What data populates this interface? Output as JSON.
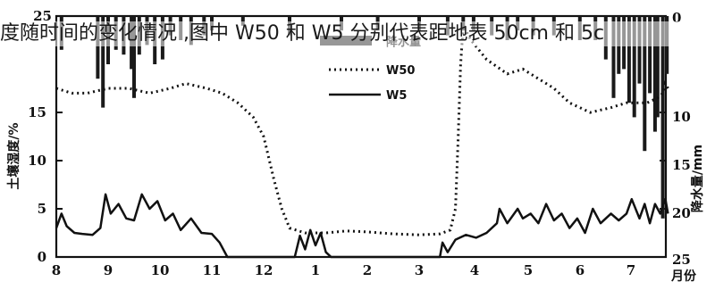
{
  "caption": "度随时间的变化情况 ,图中 W50 和 W5 分别代表距地表 50cm 和 5c",
  "colors": {
    "ink": "#111111",
    "bar": "#1a1a1a"
  },
  "chart_data": {
    "type": "line",
    "ylabel_left": "土壤湿度/%",
    "ylabel_right": "降水量/mm",
    "xlabel": "月份",
    "x_ticks": [
      "8",
      "9",
      "10",
      "11",
      "12",
      "1",
      "2",
      "3",
      "4",
      "5",
      "6",
      "7"
    ],
    "y_left_ticks": [
      "0",
      "5",
      "10",
      "15",
      "25"
    ],
    "y_right_ticks": [
      "0",
      "10",
      "15",
      "20",
      "25"
    ],
    "ylim_left": [
      0,
      25
    ],
    "ylim_right": [
      0,
      25
    ],
    "legend": [
      "降水量",
      "W50",
      "W5"
    ],
    "legend_position": "top-center",
    "series": [
      {
        "name": "W50",
        "style": "dotted",
        "points": [
          [
            0.0,
            17.5
          ],
          [
            0.3,
            17.0
          ],
          [
            0.6,
            17.0
          ],
          [
            1.0,
            17.5
          ],
          [
            1.4,
            17.5
          ],
          [
            1.8,
            17.0
          ],
          [
            2.2,
            17.5
          ],
          [
            2.5,
            18.0
          ],
          [
            2.9,
            17.5
          ],
          [
            3.2,
            17.0
          ],
          [
            3.5,
            16.0
          ],
          [
            3.8,
            14.5
          ],
          [
            4.0,
            12.5
          ],
          [
            4.2,
            8.0
          ],
          [
            4.35,
            5.0
          ],
          [
            4.5,
            3.0
          ],
          [
            4.8,
            2.5
          ],
          [
            5.2,
            2.5
          ],
          [
            5.6,
            2.7
          ],
          [
            6.0,
            2.6
          ],
          [
            6.5,
            2.4
          ],
          [
            7.0,
            2.3
          ],
          [
            7.4,
            2.4
          ],
          [
            7.6,
            2.8
          ],
          [
            7.7,
            5.0
          ],
          [
            7.75,
            12.0
          ],
          [
            7.8,
            20.0
          ],
          [
            7.85,
            24.0
          ],
          [
            8.0,
            22.5
          ],
          [
            8.3,
            20.5
          ],
          [
            8.7,
            19.0
          ],
          [
            9.0,
            19.5
          ],
          [
            9.3,
            18.5
          ],
          [
            9.6,
            17.5
          ],
          [
            9.9,
            16.0
          ],
          [
            10.3,
            15.0
          ],
          [
            10.7,
            15.5
          ],
          [
            11.0,
            16.0
          ],
          [
            11.4,
            16.0
          ],
          [
            11.6,
            16.5
          ],
          [
            11.7,
            17.0
          ],
          [
            11.75,
            18.0
          ],
          [
            11.8,
            17.5
          ]
        ]
      },
      {
        "name": "W5",
        "style": "solid",
        "points": [
          [
            0.0,
            3.0
          ],
          [
            0.1,
            4.5
          ],
          [
            0.2,
            3.2
          ],
          [
            0.35,
            2.5
          ],
          [
            0.5,
            2.4
          ],
          [
            0.7,
            2.3
          ],
          [
            0.85,
            3.0
          ],
          [
            0.95,
            6.5
          ],
          [
            1.05,
            4.5
          ],
          [
            1.2,
            5.5
          ],
          [
            1.35,
            4.0
          ],
          [
            1.5,
            3.8
          ],
          [
            1.65,
            6.5
          ],
          [
            1.8,
            5.0
          ],
          [
            1.95,
            5.8
          ],
          [
            2.1,
            3.8
          ],
          [
            2.25,
            4.5
          ],
          [
            2.4,
            2.8
          ],
          [
            2.6,
            4.0
          ],
          [
            2.8,
            2.5
          ],
          [
            3.0,
            2.4
          ],
          [
            3.15,
            1.5
          ],
          [
            3.25,
            0.5
          ],
          [
            3.3,
            0.0
          ],
          [
            4.6,
            0.0
          ],
          [
            4.7,
            2.2
          ],
          [
            4.8,
            0.8
          ],
          [
            4.9,
            2.8
          ],
          [
            5.0,
            1.2
          ],
          [
            5.1,
            2.5
          ],
          [
            5.2,
            0.5
          ],
          [
            5.3,
            0.0
          ],
          [
            7.4,
            0.0
          ],
          [
            7.45,
            1.5
          ],
          [
            7.55,
            0.5
          ],
          [
            7.7,
            1.8
          ],
          [
            7.9,
            2.3
          ],
          [
            8.1,
            2.0
          ],
          [
            8.3,
            2.5
          ],
          [
            8.5,
            3.5
          ],
          [
            8.55,
            5.0
          ],
          [
            8.7,
            3.5
          ],
          [
            8.9,
            5.0
          ],
          [
            9.0,
            4.0
          ],
          [
            9.15,
            4.5
          ],
          [
            9.3,
            3.5
          ],
          [
            9.45,
            5.5
          ],
          [
            9.6,
            3.8
          ],
          [
            9.75,
            4.5
          ],
          [
            9.9,
            3.0
          ],
          [
            10.05,
            4.0
          ],
          [
            10.2,
            2.5
          ],
          [
            10.35,
            5.0
          ],
          [
            10.5,
            3.5
          ],
          [
            10.7,
            4.5
          ],
          [
            10.85,
            3.8
          ],
          [
            11.0,
            4.5
          ],
          [
            11.1,
            6.0
          ],
          [
            11.25,
            4.0
          ],
          [
            11.35,
            5.5
          ],
          [
            11.45,
            3.5
          ],
          [
            11.55,
            5.5
          ],
          [
            11.65,
            4.5
          ],
          [
            11.75,
            6.0
          ],
          [
            11.8,
            4.5
          ]
        ]
      },
      {
        "name": "降水量",
        "style": "bars-from-top",
        "points": [
          [
            0.1,
            3.5
          ],
          [
            0.8,
            6.5
          ],
          [
            0.9,
            9.5
          ],
          [
            1.0,
            5.0
          ],
          [
            1.15,
            3.5
          ],
          [
            1.3,
            4.0
          ],
          [
            1.45,
            5.5
          ],
          [
            1.5,
            8.5
          ],
          [
            1.6,
            4.0
          ],
          [
            1.75,
            3.0
          ],
          [
            1.9,
            5.0
          ],
          [
            2.05,
            4.5
          ],
          [
            2.2,
            2.0
          ],
          [
            2.4,
            2.5
          ],
          [
            2.6,
            3.0
          ],
          [
            2.85,
            2.0
          ],
          [
            3.0,
            1.5
          ],
          [
            3.6,
            1.0
          ],
          [
            4.5,
            2.0
          ],
          [
            5.5,
            1.5
          ],
          [
            6.2,
            1.5
          ],
          [
            7.0,
            1.5
          ],
          [
            7.55,
            2.0
          ],
          [
            7.85,
            1.5
          ],
          [
            8.05,
            1.5
          ],
          [
            8.4,
            2.0
          ],
          [
            8.7,
            2.5
          ],
          [
            8.9,
            1.5
          ],
          [
            9.2,
            2.0
          ],
          [
            9.6,
            2.0
          ],
          [
            10.1,
            2.5
          ],
          [
            10.4,
            2.5
          ],
          [
            10.6,
            4.5
          ],
          [
            10.75,
            8.5
          ],
          [
            10.85,
            6.0
          ],
          [
            10.95,
            5.5
          ],
          [
            11.05,
            9.0
          ],
          [
            11.15,
            10.5
          ],
          [
            11.25,
            7.0
          ],
          [
            11.35,
            14.0
          ],
          [
            11.45,
            8.0
          ],
          [
            11.55,
            12.0
          ],
          [
            11.6,
            10.5
          ],
          [
            11.7,
            21.0
          ],
          [
            11.78,
            6.0
          ]
        ]
      }
    ]
  }
}
